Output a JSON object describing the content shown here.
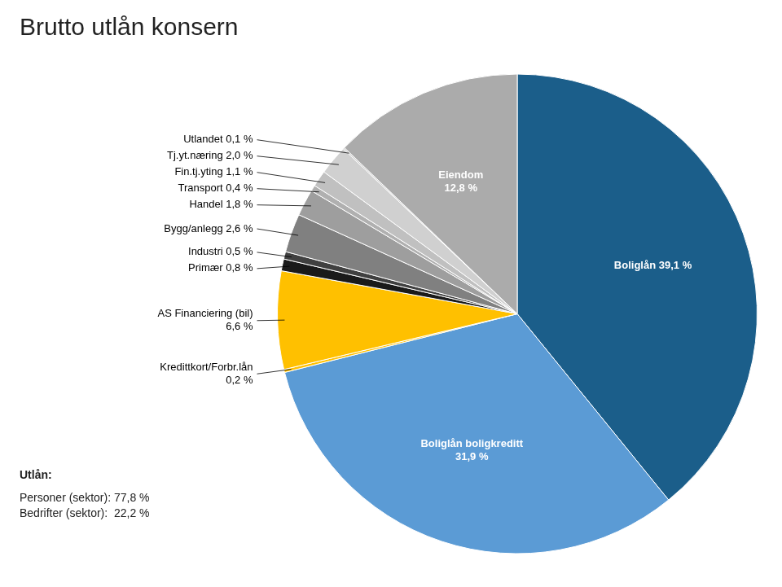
{
  "chart_data": {
    "type": "pie",
    "title": "Brutto utlån konsern",
    "categories": [
      "Boliglån 39,1 %",
      "Boliglån boligkreditt\n31,9 %",
      "Kredittkort/Forbr.lån\n0,2 %",
      "AS Financiering (bil)\n6,6 %",
      "Primær 0,8 %",
      "Industri 0,5 %",
      "Bygg/anlegg 2,6 %",
      "Handel 1,8 %",
      "Transport 0,4 %",
      "Fin.tj.yting 1,1 %",
      "Tj.yt.næring 2,0 %",
      "Utlandet 0,1 %",
      "Eiendom\n12,8 %"
    ],
    "values": [
      39.1,
      31.9,
      0.2,
      6.6,
      0.8,
      0.5,
      2.6,
      1.8,
      0.4,
      1.1,
      2.0,
      0.1,
      12.8
    ],
    "colors": [
      "#1B5E8A",
      "#5B9BD5",
      "#FFC000",
      "#FFC000",
      "#1A1A1A",
      "#404040",
      "#808080",
      "#9E9E9E",
      "#B0B0B0",
      "#C0C0C0",
      "#D0D0D0",
      "#C8C8C8",
      "#ABABAB"
    ],
    "annotations": [
      "Utlån:",
      "Personer (sektor): 77,8 %",
      "Bedrifter (sektor):  22,2 %"
    ]
  }
}
